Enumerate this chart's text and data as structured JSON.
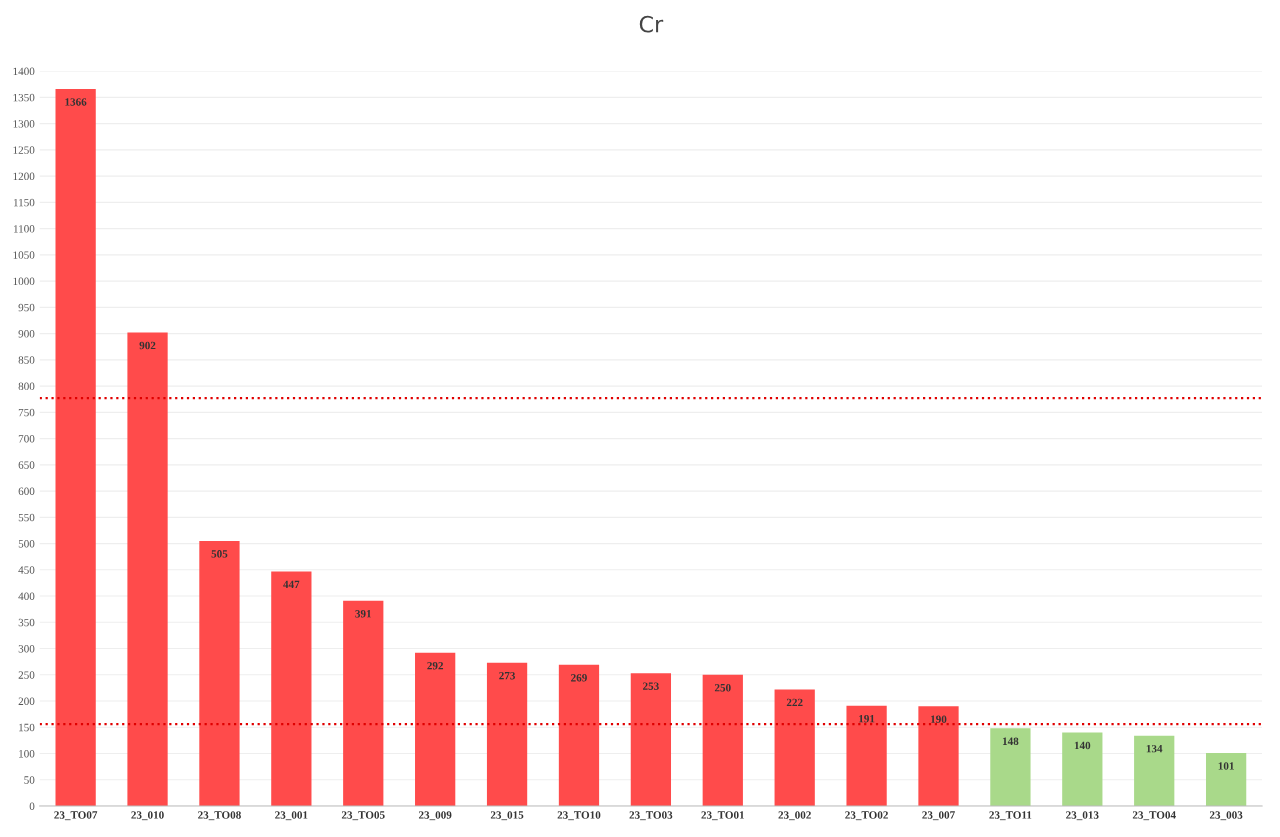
{
  "chart_data": {
    "type": "bar",
    "title": "Cr",
    "categories": [
      "23_TO07",
      "23_010",
      "23_TO08",
      "23_001",
      "23_TO05",
      "23_009",
      "23_015",
      "23_TO10",
      "23_TO03",
      "23_TO01",
      "23_002",
      "23_TO02",
      "23_007",
      "23_TO11",
      "23_013",
      "23_TO04",
      "23_003"
    ],
    "values": [
      1366,
      902,
      505,
      447,
      391,
      292,
      273,
      269,
      253,
      250,
      222,
      191,
      190,
      148,
      140,
      134,
      101
    ],
    "colors": [
      "#ff4b4b",
      "#ff4b4b",
      "#ff4b4b",
      "#ff4b4b",
      "#ff4b4b",
      "#ff4b4b",
      "#ff4b4b",
      "#ff4b4b",
      "#ff4b4b",
      "#ff4b4b",
      "#ff4b4b",
      "#ff4b4b",
      "#ff4b4b",
      "#a9d98a",
      "#a9d98a",
      "#a9d98a",
      "#a9d98a"
    ],
    "ylim": [
      0,
      1400
    ],
    "yticks": [
      0,
      50,
      100,
      150,
      200,
      250,
      300,
      350,
      400,
      450,
      500,
      550,
      600,
      650,
      700,
      750,
      800,
      850,
      900,
      950,
      1000,
      1050,
      1100,
      1150,
      1200,
      1250,
      1300,
      1350,
      1400
    ],
    "ref_lines": [
      {
        "axis": "y",
        "value": 777,
        "color": "#e00000",
        "line_style": "dotted"
      },
      {
        "axis": "y",
        "value": 156,
        "color": "#e00000",
        "line_style": "dotted"
      }
    ],
    "data_labels": true,
    "grid": "y",
    "legend": false
  }
}
